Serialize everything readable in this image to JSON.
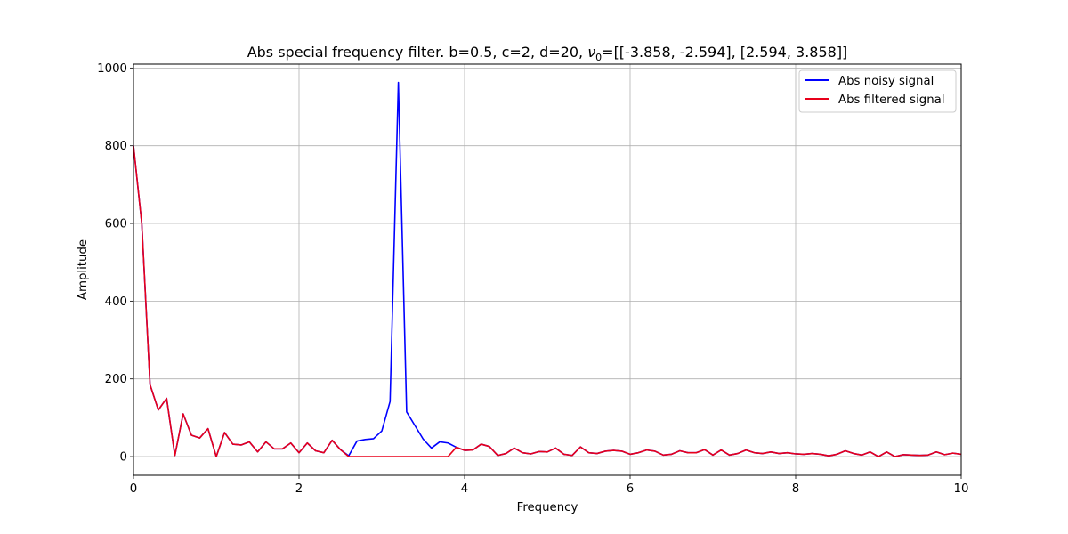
{
  "chart_data": {
    "type": "line",
    "title": "Abs special frequency filter. b=0.5, c=2, d=20, ν₀=[[-3.858, -2.594], [2.594, 3.858]]",
    "title_parts": {
      "prefix": "Abs special frequency filter. b=0.5, c=2, d=20, ",
      "nu": "ν",
      "nu_sub": "0",
      "suffix": "=[[-3.858, -2.594], [2.594, 3.858]]"
    },
    "xlabel": "Frequency",
    "ylabel": "Amplitude",
    "xlim": [
      0,
      10
    ],
    "ylim": [
      -48,
      1010
    ],
    "xticks": [
      0,
      2,
      4,
      6,
      8,
      10
    ],
    "yticks": [
      0,
      200,
      400,
      600,
      800,
      1000
    ],
    "grid": true,
    "legend_position": "upper right",
    "x": [
      0.0,
      0.1,
      0.2,
      0.3,
      0.4,
      0.5,
      0.6,
      0.7,
      0.8,
      0.9,
      1.0,
      1.1,
      1.2,
      1.3,
      1.4,
      1.5,
      1.6,
      1.7,
      1.8,
      1.9,
      2.0,
      2.1,
      2.2,
      2.3,
      2.4,
      2.5,
      2.6,
      2.7,
      2.8,
      2.9,
      3.0,
      3.1,
      3.2,
      3.3,
      3.4,
      3.5,
      3.6,
      3.7,
      3.8,
      3.9,
      4.0,
      4.1,
      4.2,
      4.3,
      4.4,
      4.5,
      4.6,
      4.7,
      4.8,
      4.9,
      5.0,
      5.1,
      5.2,
      5.3,
      5.4,
      5.5,
      5.6,
      5.7,
      5.8,
      5.9,
      6.0,
      6.1,
      6.2,
      6.3,
      6.4,
      6.5,
      6.6,
      6.7,
      6.8,
      6.9,
      7.0,
      7.1,
      7.2,
      7.3,
      7.4,
      7.5,
      7.6,
      7.7,
      7.8,
      7.9,
      8.0,
      8.1,
      8.2,
      8.3,
      8.4,
      8.5,
      8.6,
      8.7,
      8.8,
      8.9,
      9.0,
      9.1,
      9.2,
      9.3,
      9.4,
      9.5,
      9.6,
      9.7,
      9.8,
      9.9,
      10.0
    ],
    "series": [
      {
        "name": "Abs noisy signal",
        "color": "#0000ff",
        "values": [
          800,
          600,
          185,
          120,
          150,
          3,
          110,
          55,
          48,
          72,
          0,
          62,
          32,
          30,
          38,
          12,
          38,
          20,
          20,
          35,
          10,
          35,
          15,
          10,
          42,
          18,
          2,
          40,
          44,
          46,
          66,
          142,
          963,
          115,
          80,
          45,
          22,
          38,
          35,
          24,
          16,
          17,
          32,
          26,
          3,
          8,
          22,
          10,
          7,
          13,
          12,
          22,
          6,
          3,
          25,
          10,
          8,
          14,
          16,
          14,
          6,
          10,
          17,
          14,
          4,
          6,
          15,
          10,
          10,
          18,
          4,
          17,
          4,
          8,
          17,
          10,
          8,
          12,
          8,
          10,
          7,
          6,
          8,
          6,
          2,
          6,
          15,
          8,
          4,
          12,
          0,
          12,
          0,
          5,
          4,
          3,
          4,
          12,
          5,
          9,
          6
        ]
      },
      {
        "name": "Abs filtered signal",
        "color": "#e8001a",
        "values": [
          800,
          600,
          185,
          120,
          150,
          3,
          110,
          55,
          48,
          72,
          0,
          62,
          32,
          30,
          38,
          12,
          38,
          20,
          20,
          35,
          10,
          35,
          15,
          10,
          42,
          18,
          0,
          0,
          0,
          0,
          0,
          0,
          0,
          0,
          0,
          0,
          0,
          0,
          0,
          24,
          16,
          17,
          32,
          26,
          3,
          8,
          22,
          10,
          7,
          13,
          12,
          22,
          6,
          3,
          25,
          10,
          8,
          14,
          16,
          14,
          6,
          10,
          17,
          14,
          4,
          6,
          15,
          10,
          10,
          18,
          4,
          17,
          4,
          8,
          17,
          10,
          8,
          12,
          8,
          10,
          7,
          6,
          8,
          6,
          2,
          6,
          15,
          8,
          4,
          12,
          0,
          12,
          0,
          5,
          4,
          3,
          4,
          12,
          5,
          9,
          6
        ]
      }
    ]
  }
}
